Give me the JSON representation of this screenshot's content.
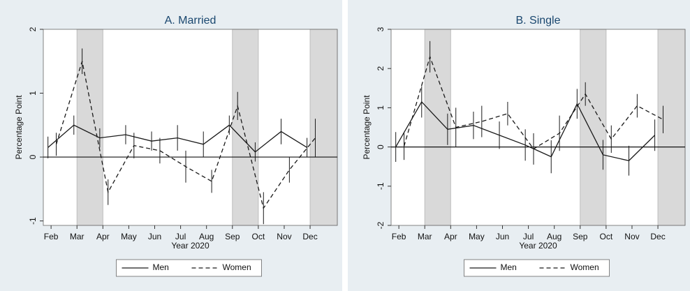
{
  "chart_data": [
    {
      "type": "line",
      "title": "A. Married",
      "x_label": "Year 2020",
      "y_label": "Percentage Point",
      "xlim": [
        1.7,
        13.05
      ],
      "xticks": [
        {
          "value": 2,
          "label": "Feb"
        },
        {
          "value": 3,
          "label": "Mar"
        },
        {
          "value": 4,
          "label": "Apr"
        },
        {
          "value": 5,
          "label": "May"
        },
        {
          "value": 6,
          "label": "Jun"
        },
        {
          "value": 7,
          "label": "Jul"
        },
        {
          "value": 8,
          "label": "Aug"
        },
        {
          "value": 9,
          "label": "Sep"
        },
        {
          "value": 10,
          "label": "Oct"
        },
        {
          "value": 11,
          "label": "Nov"
        },
        {
          "value": 12,
          "label": "Dec"
        }
      ],
      "ylim": [
        -1.07,
        2
      ],
      "yticks": [
        -1,
        0,
        1,
        2
      ],
      "shaded": [
        [
          3,
          4
        ],
        [
          9,
          10
        ],
        [
          12,
          13.05
        ]
      ],
      "legend": "bottom",
      "series": [
        {
          "name": "Men",
          "color": "#1a1a1a",
          "dash": "solid",
          "x": [
            1.88,
            2.88,
            3.88,
            4.88,
            5.88,
            6.88,
            7.88,
            8.88,
            9.88,
            10.88,
            11.88
          ],
          "values": [
            0.15,
            0.5,
            0.3,
            0.35,
            0.25,
            0.3,
            0.2,
            0.5,
            0.08,
            0.4,
            0.15
          ],
          "errors": [
            0.17,
            0.15,
            0.15,
            0.15,
            0.15,
            0.2,
            0.2,
            0.15,
            0.15,
            0.2,
            0.15
          ]
        },
        {
          "name": "Women",
          "color": "#1a1a1a",
          "dash": "dashed",
          "x": [
            2.2,
            3.2,
            4.2,
            5.2,
            6.2,
            7.2,
            8.2,
            9.2,
            10.2,
            11.2,
            12.2
          ],
          "values": [
            0.2,
            1.5,
            -0.55,
            0.18,
            0.1,
            -0.15,
            -0.38,
            0.8,
            -0.8,
            -0.2,
            0.3
          ],
          "errors": [
            0.18,
            0.2,
            0.2,
            0.2,
            0.2,
            0.25,
            0.18,
            0.22,
            0.25,
            0.2,
            0.3
          ]
        }
      ]
    },
    {
      "type": "line",
      "title": "B. Single",
      "x_label": "Year 2020",
      "y_label": "Percentage Point",
      "xlim": [
        1.7,
        13.05
      ],
      "xticks": [
        {
          "value": 2,
          "label": "Feb"
        },
        {
          "value": 3,
          "label": "Mar"
        },
        {
          "value": 4,
          "label": "Apr"
        },
        {
          "value": 5,
          "label": "May"
        },
        {
          "value": 6,
          "label": "Jun"
        },
        {
          "value": 7,
          "label": "Jul"
        },
        {
          "value": 8,
          "label": "Aug"
        },
        {
          "value": 9,
          "label": "Sep"
        },
        {
          "value": 10,
          "label": "Oct"
        },
        {
          "value": 11,
          "label": "Nov"
        },
        {
          "value": 12,
          "label": "Dec"
        }
      ],
      "ylim": [
        -2,
        3
      ],
      "yticks": [
        -2,
        -1,
        0,
        1,
        2,
        3
      ],
      "shaded": [
        [
          3,
          4
        ],
        [
          9,
          10
        ],
        [
          12,
          13.05
        ]
      ],
      "legend": "bottom",
      "series": [
        {
          "name": "Men",
          "color": "#1a1a1a",
          "dash": "solid",
          "x": [
            1.88,
            2.88,
            3.88,
            4.88,
            5.88,
            6.88,
            7.88,
            8.88,
            9.88,
            10.88,
            11.88
          ],
          "values": [
            0,
            1.15,
            0.45,
            0.55,
            0.3,
            0.05,
            -0.25,
            1.1,
            -0.2,
            -0.35,
            0.3
          ],
          "errors": [
            0.38,
            0.4,
            0.4,
            0.35,
            0.35,
            0.4,
            0.42,
            0.38,
            0.38,
            0.38,
            0.4
          ]
        },
        {
          "name": "Women",
          "color": "#1a1a1a",
          "dash": "dashed",
          "x": [
            2.2,
            3.2,
            4.2,
            5.2,
            6.2,
            7.2,
            8.2,
            9.2,
            10.2,
            11.2,
            12.2
          ],
          "values": [
            0.02,
            2.3,
            0.5,
            0.65,
            0.85,
            -0.05,
            0.35,
            1.35,
            0.2,
            1.05,
            0.7
          ],
          "errors": [
            0.35,
            0.4,
            0.5,
            0.4,
            0.3,
            0.4,
            0.45,
            0.3,
            0.35,
            0.3,
            0.35
          ]
        }
      ]
    }
  ]
}
